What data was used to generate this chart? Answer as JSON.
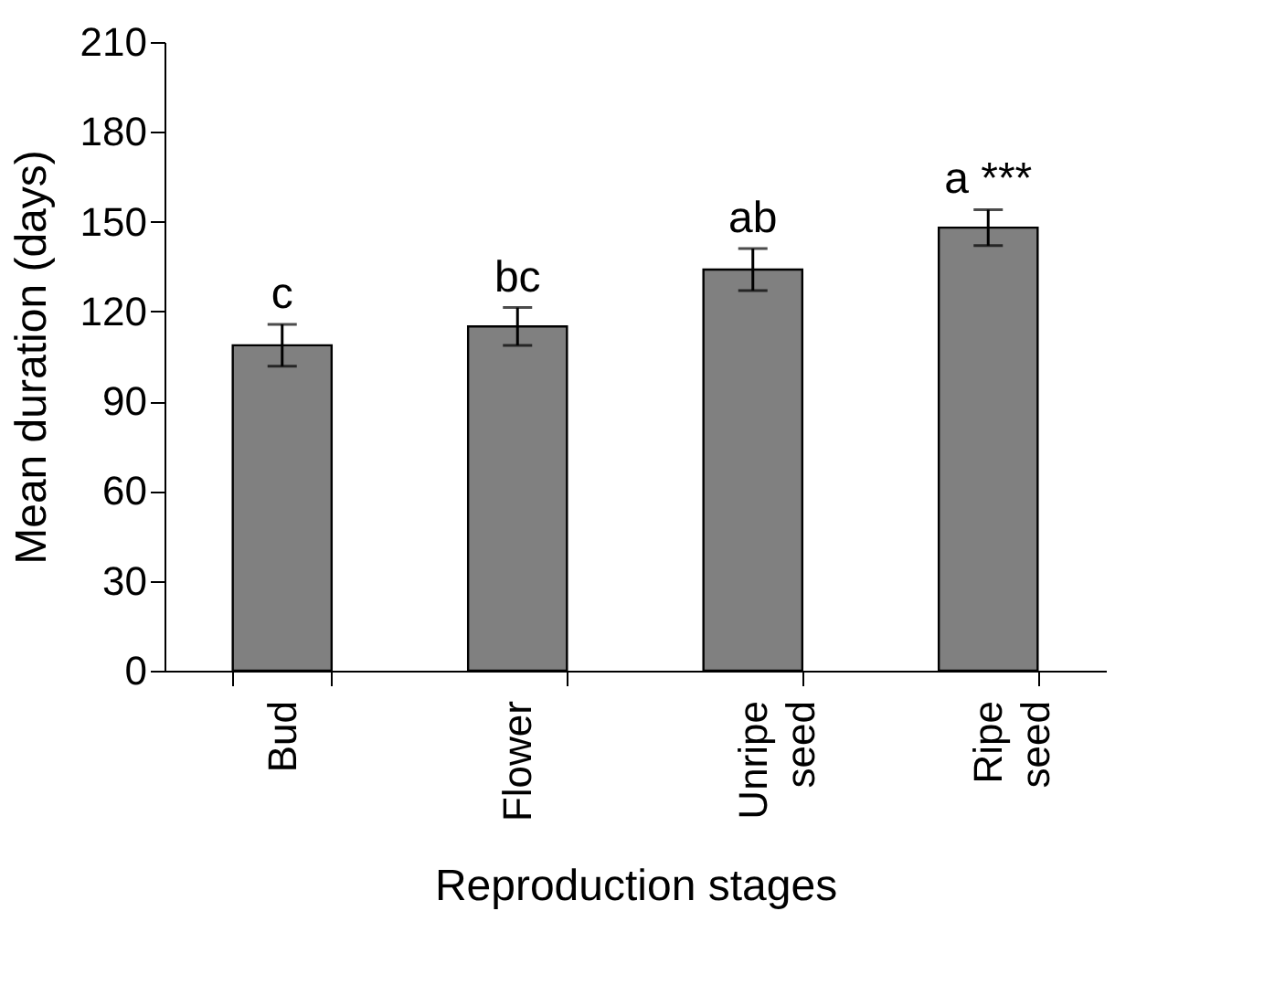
{
  "chart_data": {
    "type": "bar",
    "xlabel": "Reproduction stages",
    "ylabel": "Mean duration (days)",
    "categories": [
      "Bud",
      "Flower",
      "Unripe seed",
      "Ripe seed"
    ],
    "values": [
      108.7,
      115,
      134,
      148
    ],
    "errors": [
      7,
      6.3,
      7,
      6
    ],
    "color": "#808080",
    "ylim": [
      0,
      210
    ],
    "yticks": [
      0,
      30,
      60,
      90,
      120,
      150,
      180,
      210
    ],
    "grid": false,
    "annotations": [
      "c",
      "bc",
      "ab",
      "a ***"
    ]
  }
}
